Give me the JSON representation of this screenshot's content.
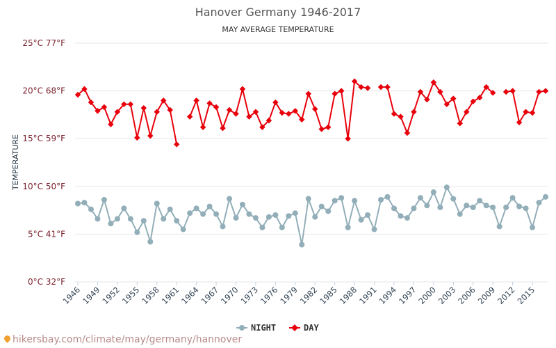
{
  "chart_data": {
    "type": "line",
    "title": "Hanover Germany 1946-2017",
    "subtitle": "MAY AVERAGE TEMPERATURE",
    "ylabel": "TEMPERATURE",
    "ylim": [
      0,
      25
    ],
    "y_ticks": [
      {
        "value": 0,
        "label": "0°C 32°F"
      },
      {
        "value": 5,
        "label": "5°C 41°F"
      },
      {
        "value": 10,
        "label": "10°C 50°F"
      },
      {
        "value": 15,
        "label": "15°C 59°F"
      },
      {
        "value": 20,
        "label": "20°C 68°F"
      },
      {
        "value": 25,
        "label": "25°C 77°F"
      }
    ],
    "x": [
      1946,
      1947,
      1948,
      1949,
      1950,
      1951,
      1952,
      1953,
      1954,
      1955,
      1956,
      1957,
      1958,
      1959,
      1960,
      1961,
      1962,
      1963,
      1964,
      1965,
      1966,
      1967,
      1968,
      1969,
      1970,
      1971,
      1972,
      1973,
      1974,
      1975,
      1976,
      1977,
      1978,
      1979,
      1980,
      1981,
      1982,
      1983,
      1984,
      1985,
      1986,
      1987,
      1988,
      1989,
      1990,
      1991,
      1992,
      1993,
      1994,
      1995,
      1996,
      1997,
      1998,
      1999,
      2000,
      2001,
      2002,
      2003,
      2004,
      2005,
      2006,
      2007,
      2008,
      2009,
      2010,
      2011,
      2012,
      2013,
      2014,
      2015,
      2016,
      2017
    ],
    "x_tick_labels": [
      "1946",
      "1949",
      "1952",
      "1955",
      "1958",
      "1961",
      "1964",
      "1967",
      "1970",
      "1973",
      "1976",
      "1979",
      "1982",
      "1985",
      "1988",
      "1991",
      "1994",
      "1997",
      "2000",
      "2003",
      "2006",
      "2009",
      "2012",
      "2015"
    ],
    "legend_position": "bottom",
    "grid": true,
    "series": [
      {
        "name": "NIGHT",
        "color": "#92aeb8",
        "values": [
          8.2,
          8.3,
          7.6,
          6.6,
          8.6,
          6.1,
          6.6,
          7.7,
          6.6,
          5.2,
          6.4,
          4.2,
          8.2,
          6.6,
          7.6,
          6.4,
          5.5,
          7.2,
          7.7,
          7.1,
          7.9,
          7.1,
          5.8,
          8.7,
          6.7,
          8.1,
          7.1,
          6.7,
          5.7,
          6.8,
          7.0,
          5.7,
          6.9,
          7.2,
          3.9,
          8.7,
          6.8,
          7.9,
          7.4,
          8.5,
          8.8,
          5.7,
          8.5,
          6.5,
          7.0,
          5.5,
          8.6,
          8.9,
          7.7,
          6.9,
          6.7,
          7.7,
          8.8,
          8.0,
          9.4,
          7.8,
          9.9,
          8.7,
          7.1,
          8.0,
          7.8,
          8.5,
          8.0,
          7.8,
          5.8,
          7.8,
          8.8,
          7.9,
          7.7,
          5.7,
          8.3,
          8.9
        ]
      },
      {
        "name": "DAY",
        "color": "#e8000b",
        "values": [
          19.6,
          20.2,
          18.8,
          17.9,
          18.3,
          16.5,
          17.8,
          18.6,
          18.6,
          15.1,
          18.2,
          15.3,
          17.8,
          19.0,
          18.0,
          14.4,
          null,
          17.3,
          19.0,
          16.2,
          18.7,
          18.3,
          16.1,
          18.0,
          17.6,
          20.2,
          17.3,
          17.8,
          16.2,
          16.9,
          18.8,
          17.7,
          17.6,
          17.9,
          17.0,
          19.7,
          18.1,
          16.0,
          16.2,
          19.7,
          20.0,
          15.0,
          21.0,
          20.4,
          20.3,
          null,
          20.4,
          20.4,
          17.6,
          17.3,
          15.6,
          17.8,
          19.9,
          19.1,
          20.9,
          19.9,
          18.6,
          19.2,
          16.6,
          17.8,
          18.9,
          19.3,
          20.4,
          19.8,
          null,
          19.9,
          20.0,
          16.7,
          17.8,
          17.7,
          19.9,
          20.0
        ]
      }
    ]
  },
  "watermark": "hikersbay.com/climate/may/germany/hannover"
}
